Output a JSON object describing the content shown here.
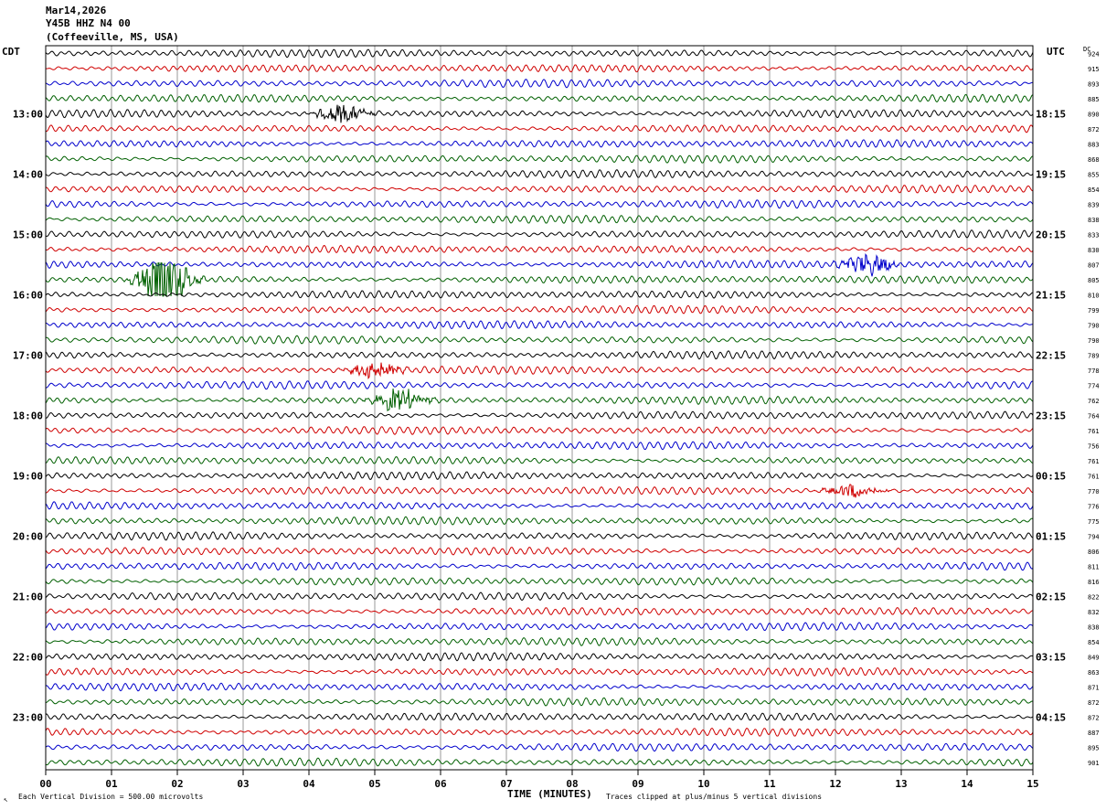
{
  "header": {
    "date": "Mar14,2026",
    "station": "Y45B HHZ N4 00",
    "location": "(Coffeeville, MS, USA)"
  },
  "footer": {
    "scale_note": "Each Vertical Division =  500.00 microvolts",
    "clip_note": "Traces clipped at plus/minus 5 vertical divisions"
  },
  "colors": {
    "trace_cycle": [
      "#000000",
      "#d00000",
      "#0000cc",
      "#006000"
    ],
    "grid": "#808080"
  },
  "chart_data": {
    "type": "line",
    "title": "",
    "xlabel": "TIME (MINUTES)",
    "ylabel_left": "CDT",
    "ylabel_right": "UTC",
    "dc_label": "DC",
    "xlim": [
      0,
      15
    ],
    "x_ticks": [
      "00",
      "01",
      "02",
      "03",
      "04",
      "05",
      "06",
      "07",
      "08",
      "09",
      "10",
      "11",
      "12",
      "13",
      "14",
      "15"
    ],
    "grid": true,
    "rows_per_hour": 4,
    "left_hour_labels": [
      "13:00",
      "14:00",
      "15:00",
      "16:00",
      "17:00",
      "18:00",
      "19:00",
      "20:00",
      "21:00",
      "22:00",
      "23:00"
    ],
    "right_hour_labels": [
      "18:15",
      "19:15",
      "20:15",
      "21:15",
      "22:15",
      "23:15",
      "00:15",
      "01:15",
      "02:15",
      "03:15",
      "04:15"
    ],
    "dc_offsets": [
      924,
      915,
      893,
      885,
      890,
      872,
      883,
      868,
      855,
      854,
      839,
      838,
      833,
      830,
      807,
      805,
      810,
      799,
      790,
      790,
      789,
      778,
      774,
      762,
      764,
      761,
      756,
      761,
      761,
      770,
      776,
      775,
      794,
      806,
      811,
      816,
      822,
      832,
      838,
      854,
      849,
      863,
      871,
      872,
      872,
      887,
      895,
      901
    ],
    "events": [
      {
        "row": 15,
        "minute": 1.8,
        "amplitude": 4.0
      },
      {
        "row": 14,
        "minute": 12.5,
        "amplitude": 1.4
      },
      {
        "row": 23,
        "minute": 5.4,
        "amplitude": 1.7
      },
      {
        "row": 29,
        "minute": 12.3,
        "amplitude": 1.1
      },
      {
        "row": 4,
        "minute": 4.5,
        "amplitude": 1.3
      },
      {
        "row": 21,
        "minute": 5.0,
        "amplitude": 1.1
      }
    ]
  }
}
